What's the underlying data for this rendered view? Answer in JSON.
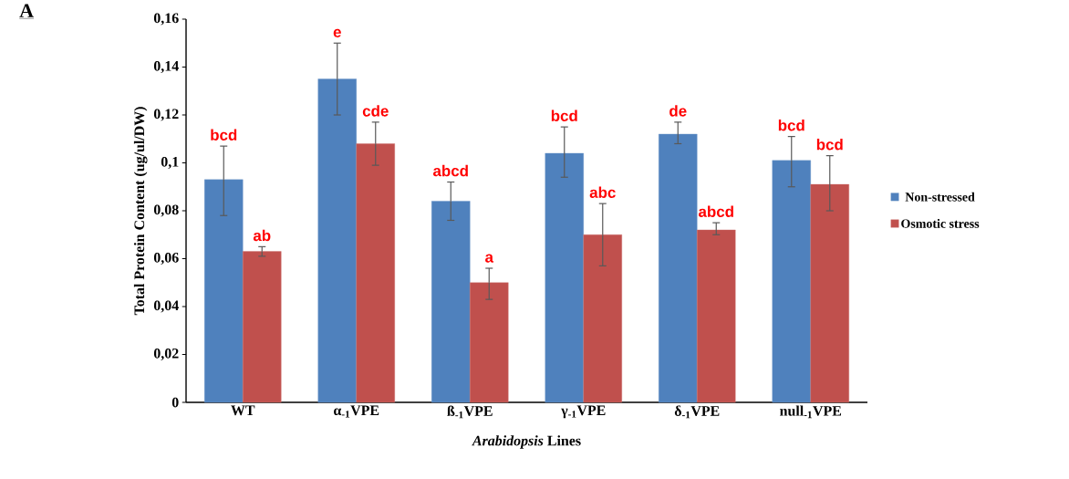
{
  "chart_data": {
    "type": "bar",
    "ylabel": "Total Protein Content (ug/ul/DW)",
    "xlabel": "*Arabidopsis* Lines",
    "categories": [
      "WT",
      "α$_{-1}$VPE",
      "ß$_{-1}$VPE",
      "γ$_{-1}$VPE",
      "δ$_{-1}$VPE",
      "null$_{-1}$VPE"
    ],
    "series": [
      {
        "name": "Non-stressed",
        "color": "#4f81bd",
        "values": [
          0.093,
          0.135,
          0.084,
          0.104,
          0.112,
          0.101
        ],
        "errors": [
          [
            0.078,
            0.107
          ],
          [
            0.12,
            0.15
          ],
          [
            0.076,
            0.092
          ],
          [
            0.094,
            0.115
          ],
          [
            0.108,
            0.117
          ],
          [
            0.09,
            0.111
          ]
        ]
      },
      {
        "name": "Osmotic stress",
        "color": "#c0504d",
        "values": [
          0.063,
          0.108,
          0.05,
          0.07,
          0.072,
          0.091
        ],
        "errors": [
          [
            0.061,
            0.065
          ],
          [
            0.099,
            0.117
          ],
          [
            0.043,
            0.056
          ],
          [
            0.057,
            0.083
          ],
          [
            0.07,
            0.075
          ],
          [
            0.08,
            0.103
          ]
        ]
      }
    ],
    "ylim": [
      0,
      0.16
    ],
    "yticks": [
      0,
      {
        "value": 0.02,
        "label": "0,02"
      },
      {
        "value": 0.04,
        "label": "0,04"
      },
      {
        "value": 0.06,
        "label": "0,06"
      },
      {
        "value": 0.08,
        "label": "0,08"
      },
      {
        "value": 0.1,
        "label": "0,1"
      },
      {
        "value": 0.12,
        "label": "0,12"
      },
      {
        "value": 0.14,
        "label": "0,14"
      },
      {
        "value": 0.16,
        "label": "0,16"
      }
    ],
    "legend": "right",
    "annotations": [
      "**A**",
      "bcd",
      "ab",
      "e",
      "cde",
      "abcd",
      "a",
      "bcd",
      "abc",
      "de",
      "abcd",
      "bcd",
      "bcd"
    ]
  }
}
